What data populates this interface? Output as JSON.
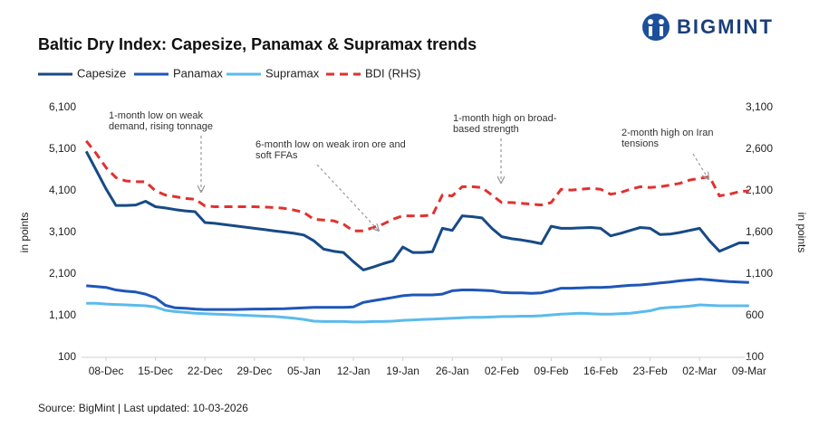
{
  "brand": "BIGMINT",
  "chart_data": {
    "type": "line",
    "title": "Baltic Dry Index: Capesize, Panamax & Supramax trends",
    "ylabel": "in points",
    "y2label": "in points",
    "source": "Source: BigMint | Last updated: 10-03-2026",
    "categories": [
      null,
      null,
      "08-Dec",
      null,
      null,
      null,
      null,
      "15-Dec",
      null,
      null,
      null,
      null,
      "22-Dec",
      null,
      null,
      null,
      null,
      "29-Dec",
      null,
      null,
      null,
      null,
      "05-Jan",
      null,
      null,
      null,
      null,
      "12-Jan",
      null,
      null,
      null,
      null,
      "19-Jan",
      null,
      null,
      null,
      null,
      "26-Jan",
      null,
      null,
      null,
      null,
      "02-Feb",
      null,
      null,
      null,
      null,
      "09-Feb",
      null,
      null,
      null,
      null,
      "16-Feb",
      null,
      null,
      null,
      null,
      "23-Feb",
      null,
      null,
      null,
      null,
      "02-Mar",
      null,
      null,
      null,
      null,
      "09-Mar"
    ],
    "ylim": [
      100,
      6100
    ],
    "yticks": [
      100,
      {
        "value": 1100,
        "label": "1,100"
      },
      {
        "value": 2100,
        "label": "2,100"
      },
      {
        "value": 3100,
        "label": "3,100"
      },
      {
        "value": 4100,
        "label": "4,100"
      },
      {
        "value": 5100,
        "label": "5,100"
      },
      {
        "value": 6100,
        "label": "6,100"
      }
    ],
    "y2lim": [
      100,
      3100
    ],
    "y2ticks": [
      100,
      600,
      {
        "value": 1100,
        "label": "1,100"
      },
      {
        "value": 1600,
        "label": "1,600"
      },
      {
        "value": 2100,
        "label": "2,100"
      },
      {
        "value": 2600,
        "label": "2,600"
      },
      {
        "value": 3100,
        "label": "3,100"
      }
    ],
    "grid": false,
    "legend": "top",
    "series": [
      {
        "name": "Capesize",
        "color": "#174a86",
        "dashed": false,
        "values": [
          5050,
          4600,
          4150,
          3750,
          3750,
          3760,
          3850,
          3720,
          3690,
          3650,
          3620,
          3600,
          3340,
          3320,
          3290,
          3260,
          3230,
          3200,
          3170,
          3140,
          3110,
          3080,
          3040,
          2900,
          2700,
          2650,
          2620,
          2400,
          2200,
          2270,
          2350,
          2420,
          2750,
          2620,
          2620,
          2640,
          3200,
          3150,
          3500,
          3480,
          3450,
          3200,
          3000,
          2950,
          2920,
          2880,
          2830,
          3250,
          3200,
          3200,
          3210,
          3220,
          3200,
          3020,
          3080,
          3150,
          3220,
          3200,
          3050,
          3060,
          3100,
          3150,
          3200,
          2900,
          2650,
          2750,
          2850,
          2850
        ]
      },
      {
        "name": "Panamax",
        "color": "#1f56b8",
        "dashed": false,
        "values": [
          1820,
          1800,
          1780,
          1720,
          1690,
          1670,
          1620,
          1530,
          1350,
          1290,
          1280,
          1260,
          1250,
          1250,
          1250,
          1250,
          1255,
          1260,
          1260,
          1265,
          1270,
          1280,
          1290,
          1300,
          1300,
          1300,
          1300,
          1310,
          1420,
          1460,
          1500,
          1540,
          1580,
          1600,
          1600,
          1600,
          1620,
          1700,
          1720,
          1720,
          1710,
          1700,
          1660,
          1650,
          1650,
          1640,
          1650,
          1700,
          1760,
          1760,
          1770,
          1780,
          1780,
          1790,
          1810,
          1830,
          1840,
          1860,
          1890,
          1910,
          1940,
          1960,
          1980,
          1960,
          1940,
          1920,
          1910,
          1900
        ]
      },
      {
        "name": "Supramax",
        "color": "#5bbbec",
        "dashed": false,
        "values": [
          1400,
          1400,
          1380,
          1370,
          1360,
          1350,
          1340,
          1310,
          1230,
          1200,
          1180,
          1160,
          1150,
          1140,
          1130,
          1120,
          1110,
          1100,
          1090,
          1080,
          1060,
          1040,
          1010,
          970,
          960,
          960,
          960,
          950,
          950,
          960,
          960,
          970,
          990,
          1000,
          1010,
          1020,
          1030,
          1040,
          1050,
          1060,
          1060,
          1070,
          1080,
          1080,
          1090,
          1090,
          1100,
          1120,
          1140,
          1150,
          1160,
          1150,
          1140,
          1140,
          1150,
          1160,
          1190,
          1220,
          1280,
          1300,
          1310,
          1330,
          1360,
          1350,
          1340,
          1340,
          1340,
          1340
        ]
      },
      {
        "name": "BDI (RHS)",
        "color": "#e0322f",
        "dashed": true,
        "axis": "y2",
        "values": [
          2700,
          2550,
          2380,
          2260,
          2220,
          2210,
          2210,
          2100,
          2050,
          2030,
          2010,
          2000,
          1920,
          1910,
          1910,
          1910,
          1910,
          1910,
          1905,
          1900,
          1890,
          1870,
          1840,
          1760,
          1750,
          1740,
          1700,
          1620,
          1620,
          1660,
          1700,
          1760,
          1800,
          1800,
          1800,
          1810,
          2050,
          2040,
          2150,
          2150,
          2140,
          2050,
          1960,
          1960,
          1950,
          1940,
          1930,
          1960,
          2120,
          2110,
          2120,
          2130,
          2120,
          2060,
          2080,
          2120,
          2150,
          2140,
          2150,
          2170,
          2190,
          2230,
          2250,
          2270,
          2040,
          2060,
          2090,
          2100
        ]
      }
    ],
    "annotations": [
      {
        "lines": [
          "1-month low on weak",
          "demand, rising tonnage"
        ]
      },
      {
        "lines": [
          "6-month low on weak iron ore and",
          "soft FFAs"
        ]
      },
      {
        "lines": [
          "1-month high on broad-",
          "based strength"
        ]
      },
      {
        "lines": [
          "2-month high on Iran",
          "tensions"
        ]
      }
    ]
  }
}
